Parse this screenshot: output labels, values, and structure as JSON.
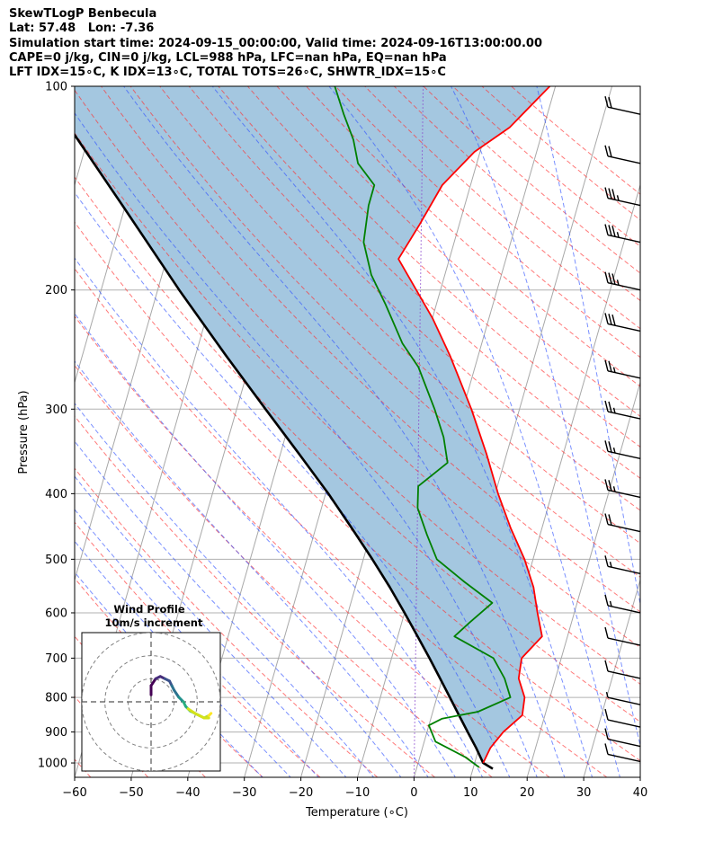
{
  "title_lines": [
    "SkewTLogP Benbecula",
    "Lat: 57.48   Lon: -7.36",
    "Simulation start time: 2024-09-15_00:00:00, Valid time: 2024-09-16T13:00:00.00",
    "CAPE=0 j/kg, CIN=0 j/kg, LCL=988 hPa, LFC=nan hPa, EQ=nan hPa",
    "LFT IDX=15∘C, K IDX=13∘C, TOTAL TOTS=26∘C, SHWTR_IDX=15∘C"
  ],
  "chart_data": {
    "type": "line",
    "subtype": "skewt-logp",
    "xlabel": "Temperature (∘C)",
    "ylabel": "Pressure (hPa)",
    "xlim": [
      -60,
      40
    ],
    "ylim": [
      1050,
      100
    ],
    "y_scale": "log",
    "grid": true,
    "x_ticks": [
      "−60",
      "−50",
      "−40",
      "−30",
      "−20",
      "−10",
      "0",
      "10",
      "20",
      "30",
      "40"
    ],
    "y_ticks": [
      "100",
      "200",
      "300",
      "400",
      "500",
      "600",
      "700",
      "800",
      "900",
      "1000"
    ],
    "colors": {
      "temperature": "#ff0000",
      "dewpoint": "#008000",
      "parcel": "#000000",
      "cape_fill": "#a4c7e0",
      "dry_adiabat": "#ff3030",
      "moist_adiabat": "#3355ff",
      "mixing_ratio": "#808080",
      "freezing_isotherm": "#8844cc"
    },
    "series": [
      {
        "key": "temperature",
        "points": [
          [
            1000,
            11.5
          ],
          [
            950,
            12.0
          ],
          [
            900,
            13.5
          ],
          [
            850,
            16.0
          ],
          [
            800,
            15.5
          ],
          [
            750,
            13.5
          ],
          [
            700,
            13.0
          ],
          [
            650,
            15.5
          ],
          [
            600,
            13.5
          ],
          [
            550,
            11.5
          ],
          [
            500,
            8.5
          ],
          [
            450,
            4.5
          ],
          [
            400,
            0.5
          ],
          [
            350,
            -3.5
          ],
          [
            300,
            -8.5
          ],
          [
            250,
            -15.0
          ],
          [
            220,
            -20.0
          ],
          [
            180,
            -29.0
          ],
          [
            160,
            -27.0
          ],
          [
            140,
            -25.0
          ],
          [
            125,
            -21.0
          ],
          [
            115,
            -16.0
          ],
          [
            100,
            -11.0
          ]
        ]
      },
      {
        "key": "dewpoint",
        "points": [
          [
            1015,
            11.0
          ],
          [
            980,
            8.0
          ],
          [
            930,
            2.0
          ],
          [
            880,
            0.0
          ],
          [
            860,
            2.0
          ],
          [
            840,
            8.0
          ],
          [
            800,
            13.0
          ],
          [
            750,
            11.0
          ],
          [
            700,
            8.0
          ],
          [
            650,
            0.0
          ],
          [
            620,
            2.0
          ],
          [
            580,
            5.0
          ],
          [
            540,
            -1.0
          ],
          [
            500,
            -7.0
          ],
          [
            460,
            -10.0
          ],
          [
            420,
            -13.0
          ],
          [
            390,
            -14.0
          ],
          [
            360,
            -10.0
          ],
          [
            330,
            -12.0
          ],
          [
            300,
            -15.0
          ],
          [
            260,
            -20.0
          ],
          [
            240,
            -24.0
          ],
          [
            210,
            -29.0
          ],
          [
            190,
            -33.0
          ],
          [
            170,
            -36.0
          ],
          [
            150,
            -37.0
          ],
          [
            140,
            -37.0
          ],
          [
            130,
            -41.0
          ],
          [
            120,
            -43.0
          ],
          [
            110,
            -46.0
          ],
          [
            100,
            -49.0
          ]
        ]
      },
      {
        "key": "parcel",
        "points": [
          [
            1020,
            13.5
          ],
          [
            1000,
            11.5
          ],
          [
            950,
            9.5
          ],
          [
            900,
            7.2
          ],
          [
            850,
            4.8
          ],
          [
            800,
            2.3
          ],
          [
            750,
            -0.4
          ],
          [
            700,
            -3.3
          ],
          [
            650,
            -6.5
          ],
          [
            600,
            -10.0
          ],
          [
            550,
            -13.9
          ],
          [
            500,
            -18.4
          ],
          [
            450,
            -23.6
          ],
          [
            400,
            -29.5
          ],
          [
            350,
            -36.6
          ],
          [
            300,
            -44.9
          ],
          [
            250,
            -54.6
          ],
          [
            200,
            -66.2
          ],
          [
            150,
            -80.5
          ],
          [
            120,
            -91.7
          ],
          [
            100,
            -101.0
          ]
        ]
      }
    ],
    "wind_barbs": [
      {
        "p": 110,
        "speed_kt": 20
      },
      {
        "p": 130,
        "speed_kt": 20
      },
      {
        "p": 150,
        "speed_kt": 35
      },
      {
        "p": 170,
        "speed_kt": 35
      },
      {
        "p": 200,
        "speed_kt": 35
      },
      {
        "p": 230,
        "speed_kt": 30
      },
      {
        "p": 270,
        "speed_kt": 25
      },
      {
        "p": 310,
        "speed_kt": 25
      },
      {
        "p": 355,
        "speed_kt": 25
      },
      {
        "p": 405,
        "speed_kt": 25
      },
      {
        "p": 455,
        "speed_kt": 20
      },
      {
        "p": 525,
        "speed_kt": 15
      },
      {
        "p": 600,
        "speed_kt": 15
      },
      {
        "p": 670,
        "speed_kt": 10
      },
      {
        "p": 750,
        "speed_kt": 10
      },
      {
        "p": 820,
        "speed_kt": 5
      },
      {
        "p": 885,
        "speed_kt": 10
      },
      {
        "p": 945,
        "speed_kt": 10
      },
      {
        "p": 995,
        "speed_kt": 10
      }
    ],
    "hodograph": {
      "title_line1": "Wind Profile",
      "title_line2": "10m/s increment",
      "ring_increment_ms": 10,
      "range_ms": 30,
      "points": [
        [
          0,
          3
        ],
        [
          0,
          7
        ],
        [
          2,
          10
        ],
        [
          4,
          11
        ],
        [
          6,
          10
        ],
        [
          8,
          9
        ],
        [
          9,
          7
        ],
        [
          10,
          5
        ],
        [
          12,
          2
        ],
        [
          14,
          0
        ],
        [
          15,
          -2
        ],
        [
          17,
          -4
        ],
        [
          19,
          -5
        ],
        [
          21,
          -6
        ],
        [
          23,
          -7
        ],
        [
          25,
          -6
        ],
        [
          26,
          -5
        ]
      ],
      "points_late": [
        [
          25,
          -7
        ],
        [
          23,
          -7
        ],
        [
          21,
          -6
        ],
        [
          19,
          -5
        ],
        [
          16,
          -3
        ]
      ]
    }
  }
}
